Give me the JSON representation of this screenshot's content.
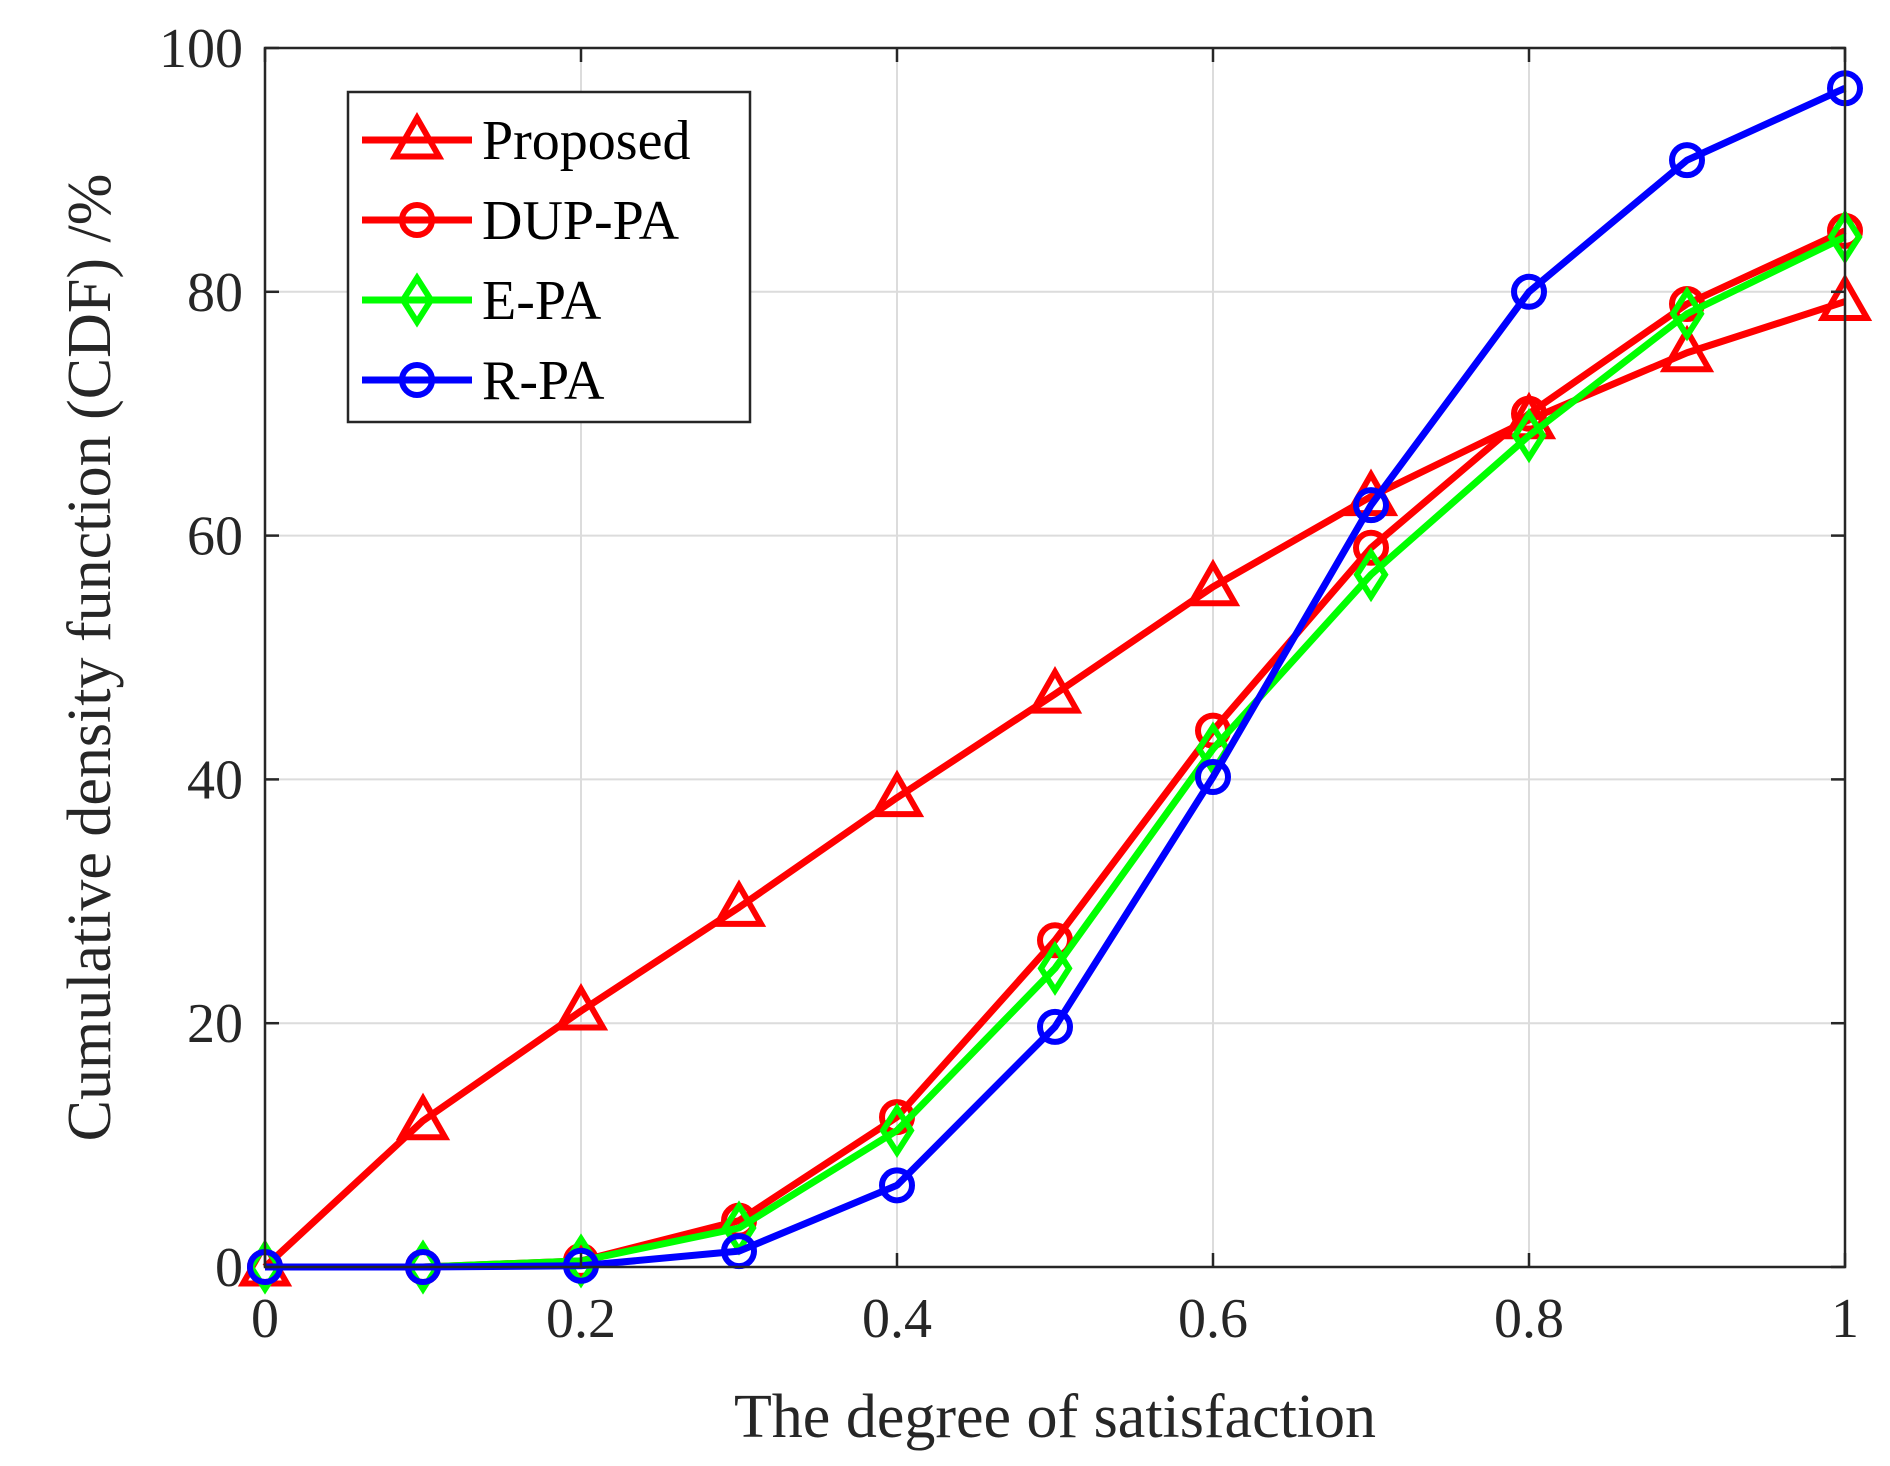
{
  "chart_data": {
    "type": "line",
    "xlabel": "The degree of satisfaction",
    "ylabel": "Cumulative density function (CDF) /%",
    "xlim": [
      0,
      1
    ],
    "ylim": [
      0,
      100
    ],
    "xticks": [
      0,
      0.2,
      0.4,
      0.6,
      0.8,
      1
    ],
    "xtick_labels": [
      "0",
      "0.2",
      "0.4",
      "0.6",
      "0.8",
      "1"
    ],
    "yticks": [
      0,
      20,
      40,
      60,
      80,
      100
    ],
    "ytick_labels": [
      "0",
      "20",
      "40",
      "60",
      "80",
      "100"
    ],
    "grid": true,
    "legend_position": "top-left",
    "x": [
      0,
      0.1,
      0.2,
      0.3,
      0.4,
      0.5,
      0.6,
      0.7,
      0.8,
      0.9,
      1.0
    ],
    "series": [
      {
        "name": "Proposed",
        "color": "#ff0000",
        "marker": "triangle",
        "values": [
          0,
          12,
          21,
          29.5,
          38.5,
          47,
          55.8,
          63.2,
          69.5,
          75,
          79.2
        ]
      },
      {
        "name": "DUP-PA",
        "color": "#ff0000",
        "marker": "circle",
        "values": [
          0,
          0,
          0.5,
          3.8,
          12.3,
          26.8,
          44,
          59,
          70,
          79,
          85
        ]
      },
      {
        "name": "E-PA",
        "color": "#00ff00",
        "marker": "diamond",
        "values": [
          0,
          0,
          0.5,
          3.2,
          11.2,
          24.5,
          42.5,
          56.8,
          68.2,
          78.2,
          84.5
        ]
      },
      {
        "name": "R-PA",
        "color": "#0000ff",
        "marker": "circle",
        "values": [
          0,
          0,
          0.1,
          1.3,
          6.7,
          19.7,
          40.2,
          62.5,
          80,
          90.8,
          96.7
        ]
      }
    ]
  }
}
